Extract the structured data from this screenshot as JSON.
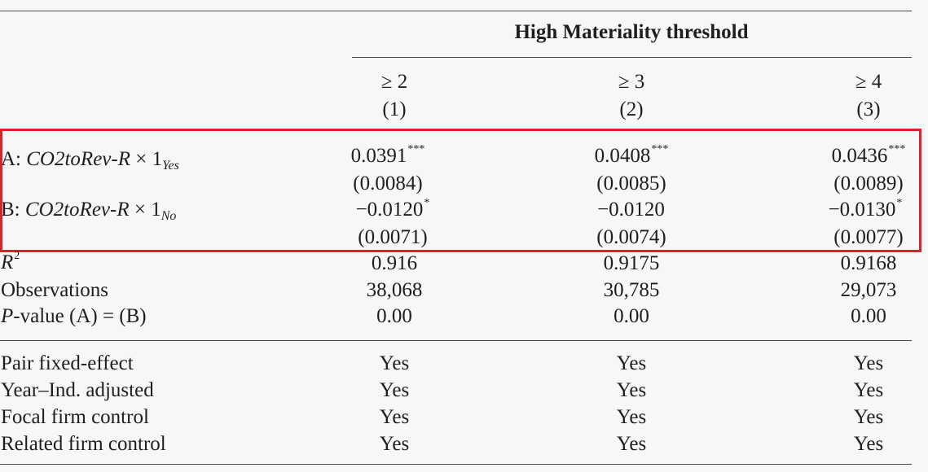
{
  "header": {
    "group_title": "High Materiality threshold",
    "columns": [
      {
        "threshold": "≥ 2",
        "number": "(1)"
      },
      {
        "threshold": "≥ 3",
        "number": "(2)"
      },
      {
        "threshold": "≥ 4",
        "number": "(3)"
      }
    ]
  },
  "rows": {
    "a": {
      "label_prefix": "A: ",
      "label_var": "CO2toRev-R",
      "label_times": " × 1",
      "label_sub": "Yes",
      "coefs": [
        "0.0391",
        "0.0408",
        "0.0436"
      ],
      "stars": [
        "***",
        "***",
        "***"
      ],
      "ses": [
        "(0.0084)",
        "(0.0085)",
        "(0.0089)"
      ]
    },
    "b": {
      "label_prefix": "B: ",
      "label_var": "CO2toRev-R",
      "label_times": " × 1",
      "label_sub": "No",
      "coefs": [
        "−0.0120",
        "−0.0120",
        "−0.0130"
      ],
      "stars": [
        "*",
        "",
        "*"
      ],
      "ses": [
        "(0.0071)",
        "(0.0074)",
        "(0.0077)"
      ]
    },
    "r2": {
      "label": "R",
      "label_sup": "2",
      "values": [
        "0.916",
        "0.9175",
        "0.9168"
      ]
    },
    "obs": {
      "label": "Observations",
      "values": [
        "38,068",
        "30,785",
        "29,073"
      ]
    },
    "pval": {
      "label_italic": "P",
      "label_rest": "-value (A) = (B)",
      "values": [
        "0.00",
        "0.00",
        "0.00"
      ]
    }
  },
  "controls": [
    {
      "label": "Pair fixed-effect",
      "values": [
        "Yes",
        "Yes",
        "Yes"
      ]
    },
    {
      "label": "Year–Ind. adjusted",
      "values": [
        "Yes",
        "Yes",
        "Yes"
      ]
    },
    {
      "label": "Focal firm control",
      "values": [
        "Yes",
        "Yes",
        "Yes"
      ]
    },
    {
      "label": "Related firm control",
      "values": [
        "Yes",
        "Yes",
        "Yes"
      ]
    }
  ],
  "highlight_color": "#e0202a"
}
